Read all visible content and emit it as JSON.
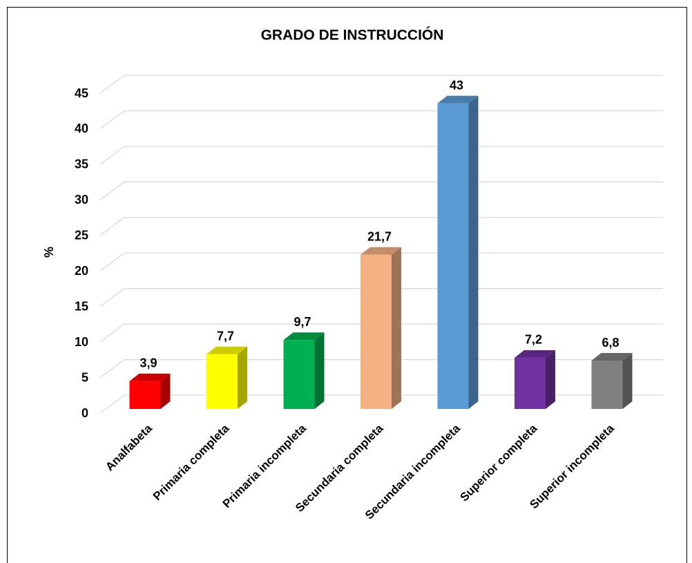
{
  "chart_data": {
    "type": "bar3d",
    "title": "GRADO DE INSTRUCCIÓN",
    "ylabel": "%",
    "categories": [
      "Analfabeta",
      "Primaria completa",
      "Primaria incompleta",
      "Secundaria completa",
      "Secundaria incompleta",
      "Superior completa",
      "Superior incompleta"
    ],
    "values": [
      3.9,
      7.7,
      9.7,
      21.7,
      43,
      7.2,
      6.8
    ],
    "value_labels": [
      "3,9",
      "7,7",
      "9,7",
      "21,7",
      "43",
      "7,2",
      "6,8"
    ],
    "colors": [
      "#ff0000",
      "#ffff00",
      "#00b050",
      "#f4b183",
      "#5b9bd5",
      "#7030a0",
      "#808080"
    ],
    "ylim": [
      0,
      45
    ],
    "yticks": [
      0,
      5,
      10,
      15,
      20,
      25,
      30,
      35,
      40,
      45
    ],
    "grid": true
  }
}
